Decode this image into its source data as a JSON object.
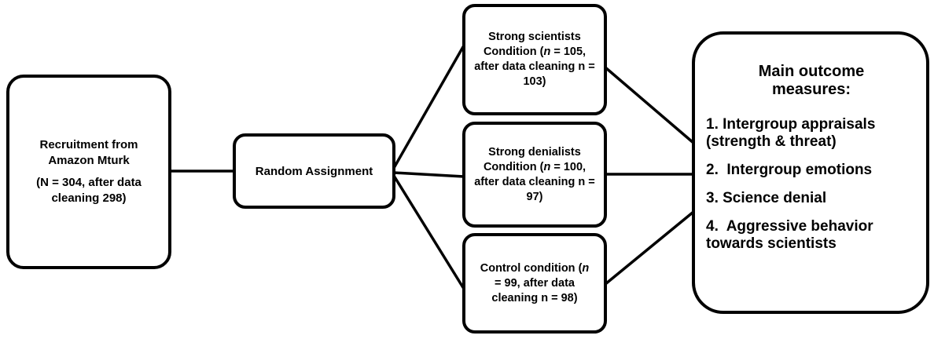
{
  "recruitment": {
    "title": "Recruitment from Amazon Mturk",
    "detail": "(N = 304, after data cleaning 298)"
  },
  "assignment": "Random Assignment",
  "conditions": [
    {
      "parts": [
        "Strong scientists Condition (",
        "n",
        " = 105, after data cleaning n = 103)"
      ]
    },
    {
      "parts": [
        "Strong denialists Condition (",
        "n",
        " = 100, after data cleaning n = 97)"
      ]
    },
    {
      "parts": [
        "Control condition (",
        "n",
        " = 99, after data cleaning n = 98)"
      ]
    }
  ],
  "outcomes": {
    "title": "Main outcome measures:",
    "items": [
      "1. Intergroup appraisals (strength & threat)",
      "2.  Intergroup emotions",
      "3. Science denial",
      "4.  Aggressive behavior towards scientists"
    ]
  }
}
